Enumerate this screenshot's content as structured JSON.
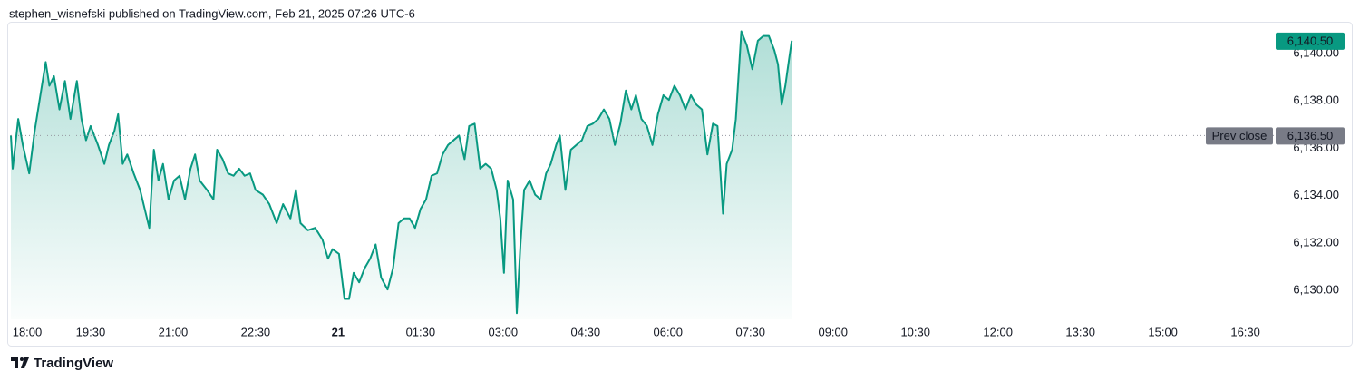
{
  "header": "stephen_wisnefski published on TradingView.com, Feb 21, 2025 07:26 UTC-6",
  "brand": "TradingView",
  "chart_data": {
    "type": "area",
    "color": "#089981",
    "x": [
      3,
      5,
      11,
      16,
      23,
      29,
      36,
      41,
      45,
      50,
      56,
      62,
      68,
      75,
      80,
      85,
      90,
      98,
      105,
      110,
      116,
      120,
      125,
      130,
      137,
      144,
      149,
      154,
      159,
      164,
      169,
      175,
      181,
      187,
      193,
      199,
      204,
      209,
      217,
      224,
      228,
      234,
      240,
      246,
      252,
      258,
      264,
      270,
      278,
      285,
      293,
      300,
      308,
      314,
      319,
      327,
      335,
      343,
      349,
      354,
      361,
      367,
      372,
      377,
      383,
      389,
      395,
      401,
      407,
      414,
      420,
      426,
      432,
      438,
      444,
      450,
      456,
      462,
      468,
      474,
      480,
      486,
      492,
      498,
      503,
      509,
      515,
      521,
      527,
      533,
      537,
      541,
      545,
      551,
      555,
      559,
      563,
      569,
      575,
      581,
      587,
      592,
      598,
      602,
      608,
      614,
      620,
      626,
      632,
      638,
      644,
      650,
      656,
      662,
      668,
      674,
      680,
      685,
      691,
      697,
      703,
      709,
      715,
      721,
      727,
      733,
      739,
      745,
      751,
      757,
      763,
      769,
      774,
      780,
      784,
      790,
      794,
      800,
      806,
      812,
      818,
      824,
      830,
      836,
      840,
      844,
      848,
      852,
      855
    ],
    "values": [
      6136.5,
      6135.1,
      6137.2,
      6136.1,
      6134.9,
      6136.7,
      6138.4,
      6139.6,
      6138.6,
      6139.0,
      6137.6,
      6138.8,
      6137.2,
      6138.8,
      6137.2,
      6136.3,
      6136.9,
      6136.1,
      6135.3,
      6136.1,
      6136.7,
      6137.4,
      6135.3,
      6135.7,
      6134.9,
      6134.2,
      6133.4,
      6132.6,
      6135.9,
      6134.6,
      6135.3,
      6133.8,
      6134.6,
      6134.8,
      6133.8,
      6135.1,
      6135.7,
      6134.6,
      6134.2,
      6133.8,
      6135.9,
      6135.5,
      6134.9,
      6134.8,
      6135.1,
      6134.8,
      6134.9,
      6134.2,
      6134.0,
      6133.6,
      6132.8,
      6133.6,
      6133.0,
      6134.2,
      6132.8,
      6132.5,
      6132.6,
      6132.1,
      6131.3,
      6131.7,
      6131.5,
      6129.6,
      6129.6,
      6130.7,
      6130.3,
      6130.9,
      6131.3,
      6131.9,
      6130.5,
      6130.0,
      6130.9,
      6132.8,
      6133.0,
      6133.0,
      6132.6,
      6133.4,
      6133.8,
      6134.8,
      6134.9,
      6135.7,
      6136.1,
      6136.3,
      6136.5,
      6135.5,
      6136.9,
      6137.0,
      6135.1,
      6135.3,
      6135.1,
      6134.2,
      6133.0,
      6130.7,
      6134.6,
      6133.8,
      6129.0,
      6131.9,
      6134.2,
      6134.6,
      6134.0,
      6133.8,
      6134.9,
      6135.3,
      6136.1,
      6136.5,
      6134.2,
      6135.9,
      6136.1,
      6136.3,
      6136.9,
      6137.0,
      6137.2,
      6137.6,
      6137.2,
      6136.1,
      6137.0,
      6138.4,
      6137.6,
      6138.2,
      6137.2,
      6136.9,
      6136.1,
      6137.4,
      6138.2,
      6138.0,
      6138.6,
      6138.2,
      6137.6,
      6138.2,
      6137.8,
      6137.6,
      6135.7,
      6137.0,
      6136.9,
      6133.2,
      6135.3,
      6135.9,
      6137.2,
      6140.9,
      6140.3,
      6139.3,
      6140.5,
      6140.7,
      6140.7,
      6140.1,
      6139.5,
      6137.8,
      6138.6,
      6139.7,
      6140.5
    ],
    "xlim": [
      3,
      1384
    ],
    "ylim": [
      6128.74,
      6141.07
    ],
    "xticks": [
      {
        "value": 0,
        "label": "18:00"
      },
      {
        "value": 90,
        "label": "19:30"
      },
      {
        "value": 180,
        "label": "21:00"
      },
      {
        "value": 270,
        "label": "22:30"
      },
      {
        "value": 360,
        "label": "21",
        "bold": true
      },
      {
        "value": 450,
        "label": "01:30"
      },
      {
        "value": 540,
        "label": "03:00"
      },
      {
        "value": 630,
        "label": "04:30"
      },
      {
        "value": 720,
        "label": "06:00"
      },
      {
        "value": 810,
        "label": "07:30"
      },
      {
        "value": 900,
        "label": "09:00"
      },
      {
        "value": 990,
        "label": "10:30"
      },
      {
        "value": 1080,
        "label": "12:00"
      },
      {
        "value": 1170,
        "label": "13:30"
      },
      {
        "value": 1260,
        "label": "15:00"
      },
      {
        "value": 1350,
        "label": "16:30"
      }
    ],
    "yticks": [
      {
        "value": 6130,
        "label": "6,130.00"
      },
      {
        "value": 6132,
        "label": "6,132.00"
      },
      {
        "value": 6134,
        "label": "6,134.00"
      },
      {
        "value": 6136,
        "label": "6,136.00"
      },
      {
        "value": 6138,
        "label": "6,138.00"
      },
      {
        "value": 6140,
        "label": "6,140.00"
      }
    ],
    "prev_close": {
      "name": "Prev close",
      "value": 6136.5,
      "label": "6,136.50"
    },
    "last_price": {
      "value": 6140.5,
      "label": "6,140.50"
    }
  }
}
